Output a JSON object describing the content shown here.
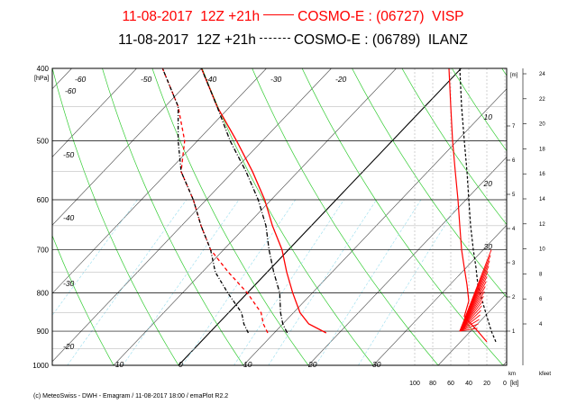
{
  "titles": {
    "line1_left": "11-08-2017  12Z +21h",
    "line1_right": "COSMO-E : (06727)  VISP",
    "line2_left": "11-08-2017  12Z +21h",
    "line2_right": "COSMO-E : (06789)  ILANZ",
    "line1_color": "#ff0000",
    "line2_color": "#000000"
  },
  "footer": "(c) MeteoSwiss - DWH - Emagram / 11-08-2017  18:00 / emaPlot R2.2",
  "chart_data": {
    "type": "line",
    "ylabel": "[hPa]",
    "ylim": [
      1000,
      400
    ],
    "y_scale": "log",
    "xlim": [
      -70,
      35
    ],
    "y_ticks": [
      "400",
      "500",
      "600",
      "700",
      "800",
      "900",
      "1000"
    ],
    "temp_labels": [
      "-60",
      "-60",
      "-50",
      "-40",
      "-30",
      "-20",
      "-50",
      "-40",
      "-30",
      "-20",
      "-10",
      "0",
      "10",
      "20",
      "30"
    ],
    "theta_labels": [
      "10",
      "20",
      "30"
    ],
    "height_km_label": "[m]",
    "height_km_ticks": [
      "1",
      "2",
      "3",
      "4",
      "5",
      "6",
      "7"
    ],
    "kft_ticks": [
      "4",
      "6",
      "8",
      "10",
      "12",
      "14",
      "16",
      "18",
      "20",
      "22",
      "24"
    ],
    "height_axis_label": "km",
    "kft_axis_label": "kfeet",
    "wind_axis_ticks": [
      "100",
      "80",
      "60",
      "40",
      "20",
      "0"
    ],
    "wind_axis_unit": "[kt]",
    "series": [
      {
        "name": "COSMO-E : (06727)  VISP",
        "color": "#ff0000",
        "dash": "solid",
        "temperature": {
          "p": [
            905,
            880,
            850,
            800,
            750,
            700,
            650,
            600,
            550,
            500,
            450,
            400
          ],
          "t": [
            18,
            14,
            11,
            7,
            3,
            -1,
            -6,
            -11,
            -17,
            -24,
            -32,
            -40
          ]
        },
        "dewpoint": {
          "p": [
            905,
            880,
            850,
            800,
            750,
            700,
            650,
            600,
            550,
            500,
            450,
            400
          ],
          "t": [
            9,
            7,
            5,
            0,
            -6,
            -12,
            -17,
            -22,
            -28,
            -32,
            -38,
            -46
          ]
        }
      },
      {
        "name": "COSMO-E : (06789)  ILANZ",
        "color": "#000000",
        "dash": "dashdot",
        "temperature": {
          "p": [
            905,
            880,
            850,
            800,
            750,
            700,
            650,
            600,
            550,
            500,
            450,
            400
          ],
          "t": [
            12,
            10,
            8,
            5,
            1,
            -3,
            -7,
            -12,
            -18,
            -25,
            -32,
            -40
          ]
        },
        "dewpoint": {
          "p": [
            905,
            880,
            850,
            800,
            750,
            700,
            650,
            600,
            550,
            500,
            450,
            400
          ],
          "t": [
            6,
            4,
            2,
            -3,
            -8,
            -12,
            -17,
            -22,
            -28,
            -33,
            -38,
            -46
          ]
        }
      }
    ],
    "wind_profile": {
      "p": [
        930,
        900,
        860,
        820,
        780,
        740,
        700,
        650,
        600,
        550,
        500,
        450,
        400
      ],
      "visp_kt": [
        20,
        30,
        45,
        40,
        42,
        45,
        48,
        50,
        52,
        55,
        58,
        60,
        62
      ],
      "ilanz_kt": [
        10,
        15,
        20,
        25,
        30,
        32,
        35,
        38,
        40,
        42,
        45,
        48,
        50
      ]
    }
  }
}
